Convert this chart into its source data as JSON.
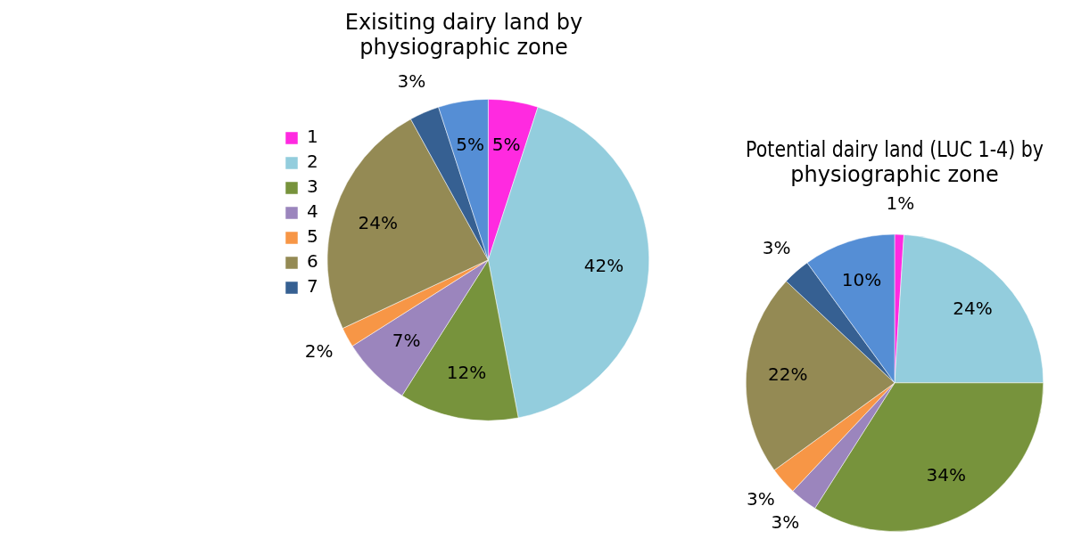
{
  "chart_data": [
    {
      "type": "pie",
      "title": "Exisiting dairy land by physiographic zone",
      "categories": [
        "1",
        "2",
        "3",
        "4",
        "5",
        "6",
        "7",
        null
      ],
      "values": [
        5,
        42,
        12,
        7,
        2,
        24,
        3,
        5
      ],
      "colors": [
        "#ff2ae0",
        "#93cddd",
        "#77933c",
        "#9b85bd",
        "#f79646",
        "#948a54",
        "#366092",
        "#558ed5"
      ],
      "value_labels": [
        "5%",
        "42%",
        "12%",
        "7%",
        "2%",
        "24%",
        "3%",
        "5%"
      ],
      "legend": "left"
    },
    {
      "type": "pie",
      "title": "Potential dairy land (LUC 1-4) by physiographic zone",
      "categories": [
        null,
        null,
        null,
        null,
        null,
        null,
        null,
        null
      ],
      "values": [
        1,
        24,
        34,
        3,
        3,
        22,
        3,
        10
      ],
      "colors": [
        "#ff2ae0",
        "#93cddd",
        "#77933c",
        "#9b85bd",
        "#f79646",
        "#948a54",
        "#366092",
        "#558ed5"
      ],
      "value_labels": [
        "1%",
        "24%",
        "34%",
        "3%",
        "3%",
        "22%",
        "3%",
        "10%"
      ]
    }
  ]
}
